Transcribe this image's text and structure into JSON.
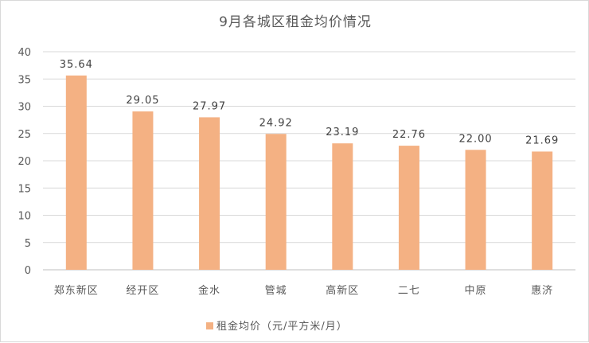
{
  "chart_data": {
    "type": "bar",
    "title": "9月各城区租金均价情况",
    "categories": [
      "郑东新区",
      "经开区",
      "金水",
      "管城",
      "高新区",
      "二七",
      "中原",
      "惠济"
    ],
    "series": [
      {
        "name": "租金均价（元/平方米/月）",
        "values": [
          35.64,
          29.05,
          27.97,
          24.92,
          23.19,
          22.76,
          22.0,
          21.69
        ],
        "labels": [
          "35.64",
          "29.05",
          "27.97",
          "24.92",
          "23.19",
          "22.76",
          "22.00",
          "21.69"
        ]
      }
    ],
    "ylim": [
      0,
      40
    ],
    "yticks": [
      "0",
      "5",
      "10",
      "15",
      "20",
      "25",
      "30",
      "35",
      "40"
    ],
    "grid": true,
    "legend_position": "bottom",
    "bar_color": "#F4B183"
  }
}
